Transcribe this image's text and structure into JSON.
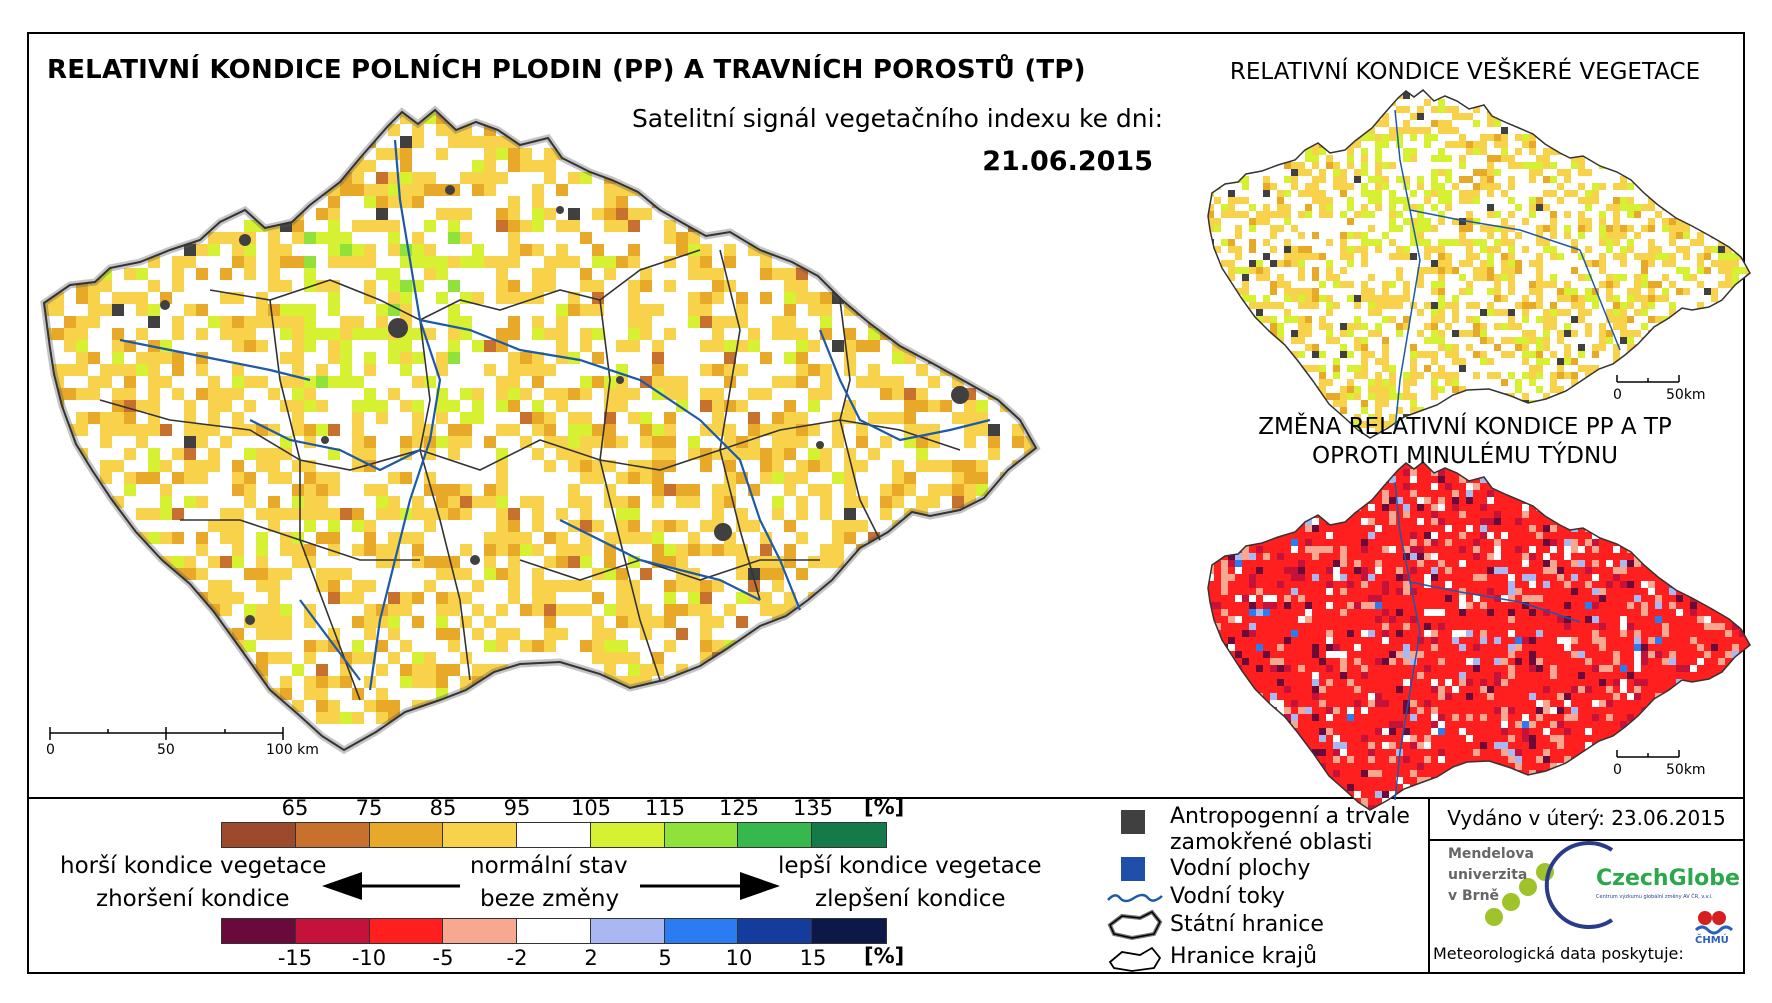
{
  "titles": {
    "main": "RELATIVNÍ KONDICE POLNÍCH PLODIN (PP) A TRAVNÍCH POROSTŮ (TP)",
    "subtitle": "Satelitní signál vegetačního indexu ke dni:",
    "date": "21.06.2015",
    "all_vegetation": "RELATIVNÍ KONDICE VEŠKERÉ VEGETACE",
    "change_line1": "ZMĚNA RELATIVNÍ KONDICE PP A TP",
    "change_line2": "OPROTI MINULÉMU TÝDNU"
  },
  "scalebars": {
    "main": [
      "0",
      "50",
      "100 km"
    ],
    "small_top": [
      "0",
      "50km"
    ],
    "small_bottom": [
      "0",
      "50km"
    ]
  },
  "legend": {
    "unit": "[%]",
    "condition_ticks": [
      "65",
      "75",
      "85",
      "95",
      "105",
      "115",
      "125",
      "135"
    ],
    "condition_colors": [
      "#9c4a2b",
      "#c8712e",
      "#e8a828",
      "#f8d24a",
      "#ffffff",
      "#d6f032",
      "#8ee23a",
      "#36b84c",
      "#157a4a"
    ],
    "change_ticks": [
      "-15",
      "-10",
      "-5",
      "-2",
      "2",
      "5",
      "10",
      "15"
    ],
    "change_colors": [
      "#6a0a3a",
      "#c4123a",
      "#ff1f1f",
      "#f8a890",
      "#ffffff",
      "#a9b7f2",
      "#2a7cf0",
      "#143c9c",
      "#0c1848"
    ],
    "worse_line1": "horší kondice vegetace",
    "worse_line2": "zhoršení kondice",
    "normal_line1": "normální stav",
    "normal_line2": "beze změny",
    "better_line1": "lepší kondice vegetace",
    "better_line2": "zlepšení kondice"
  },
  "symbols": {
    "anthropogenic_line1": "Antropogenní a trvale",
    "anthropogenic_line2": "zamokřené oblasti",
    "water_bodies": "Vodní plochy",
    "rivers": "Vodní toky",
    "state_border": "Státní hranice",
    "region_border": "Hranice krajů",
    "colors": {
      "anthropogenic": "#404040",
      "water": "#1f4fa8",
      "river": "#1c5aa8"
    }
  },
  "footer": {
    "issued": "Vydáno v úterý: 23.06.2015",
    "mendel_line1": "Mendelova",
    "mendel_line2": "univerzita",
    "mendel_line3": "v Brně",
    "czechglobe": "CzechGlobe",
    "czechglobe_sub": "Centrum výzkumu globální změny AV ČR, v.v.i.",
    "chmu": "ČHMÚ",
    "meteo": "Meteorologická data poskytuje:"
  }
}
